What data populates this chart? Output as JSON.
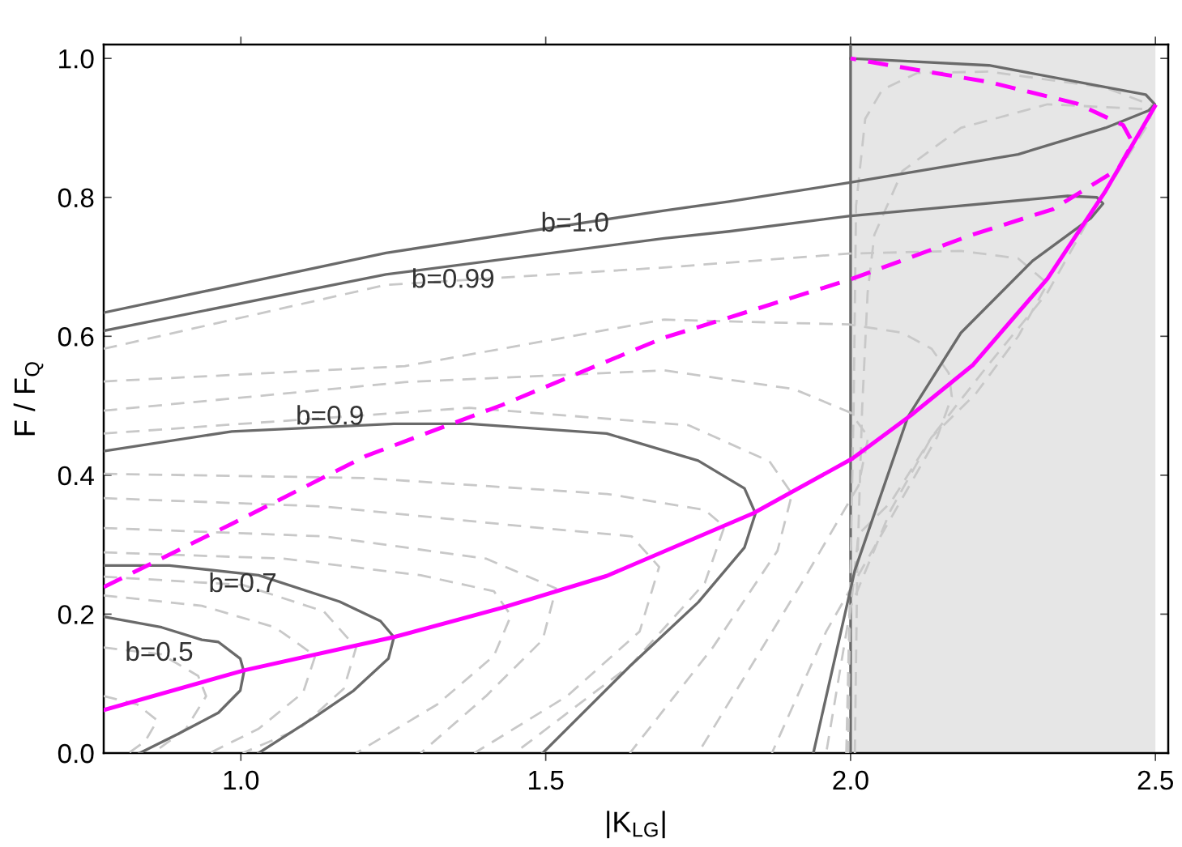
{
  "chart_data": {
    "type": "line",
    "xlabel": "|K$_{LG}$|",
    "ylabel": "F / F$_{Q}$",
    "xlim": [
      0.775,
      2.521
    ],
    "ylim": [
      0,
      1.02
    ],
    "xticks": [
      {
        "value": 1,
        "label": "1.0"
      },
      {
        "value": 1.5,
        "label": "1.5"
      },
      {
        "value": 2,
        "label": "2.0"
      },
      {
        "value": 2.5,
        "label": "2.5"
      }
    ],
    "yticks": [
      {
        "value": 0,
        "label": "0.0"
      },
      {
        "value": 0.2,
        "label": "0.2"
      },
      {
        "value": 0.4,
        "label": "0.4"
      },
      {
        "value": 0.6,
        "label": "0.6"
      },
      {
        "value": 0.8,
        "label": "0.8"
      },
      {
        "value": 1,
        "label": "1.0"
      }
    ],
    "grid": false,
    "legend": false,
    "bands": [
      {
        "axis": "x",
        "from": 2.0,
        "to": 2.5,
        "color": "#e6e6e6"
      }
    ],
    "ref_lines": [
      {
        "axis": "x",
        "value": 2.0,
        "color": "#6a6a6a"
      }
    ],
    "series": [
      {
        "color": "#c8c8c8",
        "line_style": "dashed",
        "x": [
          0.775,
          0.87,
          0.93,
          0.943,
          0.91,
          0.856
        ],
        "values": [
          0.152,
          0.142,
          0.111,
          0.082,
          0.035,
          0.0
        ]
      },
      {
        "color": "#c8c8c8",
        "line_style": "dashed",
        "x": [
          0.775,
          0.83,
          0.863,
          0.843,
          0.816
        ],
        "values": [
          0.082,
          0.07,
          0.047,
          0.017,
          0.0
        ]
      },
      {
        "color": "#c8c8c8",
        "line_style": "dashed",
        "x": [
          0.775,
          0.936,
          1.056,
          1.122,
          1.102,
          1.029,
          0.949
        ],
        "values": [
          0.227,
          0.212,
          0.181,
          0.14,
          0.087,
          0.035,
          0.0
        ]
      },
      {
        "color": "#c8c8c8",
        "line_style": "dashed",
        "x": [
          0.775,
          1.003,
          1.136,
          1.189,
          1.169,
          1.096,
          1.003
        ],
        "values": [
          0.254,
          0.242,
          0.204,
          0.152,
          0.093,
          0.035,
          0.0
        ]
      },
      {
        "color": "#c8c8c8",
        "line_style": "dashed",
        "x": [
          0.775,
          1.069,
          1.295,
          1.415,
          1.443,
          1.415,
          1.322,
          1.189
        ],
        "values": [
          0.289,
          0.28,
          0.256,
          0.233,
          0.198,
          0.14,
          0.07,
          0.0
        ]
      },
      {
        "color": "#c8c8c8",
        "line_style": "dashed",
        "x": [
          0.775,
          1.136,
          1.402,
          1.517,
          1.495,
          1.402,
          1.295
        ],
        "values": [
          0.324,
          0.312,
          0.28,
          0.237,
          0.163,
          0.082,
          0.0
        ]
      },
      {
        "color": "#c8c8c8",
        "line_style": "dashed",
        "x": [
          0.775,
          1.136,
          1.468,
          1.641,
          1.686,
          1.654,
          1.535,
          1.383
        ],
        "values": [
          0.367,
          0.355,
          0.326,
          0.312,
          0.268,
          0.175,
          0.082,
          0.0
        ]
      },
      {
        "color": "#c8c8c8",
        "line_style": "dashed",
        "x": [
          0.775,
          1.202,
          1.601,
          1.761,
          1.793,
          1.761,
          1.641,
          1.449
        ],
        "values": [
          0.402,
          0.396,
          0.373,
          0.35,
          0.326,
          0.245,
          0.128,
          0.0
        ]
      },
      {
        "color": "#c8c8c8",
        "line_style": "dashed",
        "x": [
          0.775,
          1.375,
          1.734,
          1.867,
          1.904,
          1.88,
          1.774,
          1.638
        ],
        "values": [
          0.46,
          0.497,
          0.472,
          0.42,
          0.373,
          0.291,
          0.152,
          0.0
        ]
      },
      {
        "color": "#c8c8c8",
        "line_style": "dashed",
        "x": [
          0.775,
          1.269,
          1.694,
          1.907,
          2.0,
          2.029,
          2.013,
          1.92,
          1.75
        ],
        "values": [
          0.493,
          0.534,
          0.551,
          0.524,
          0.49,
          0.455,
          0.385,
          0.245,
          0.0
        ]
      },
      {
        "color": "#c8c8c8",
        "line_style": "dashed",
        "x": [
          0.775,
          1.269,
          1.694,
          1.997,
          2.085,
          2.133,
          2.161,
          2.166,
          2.142,
          2.066,
          1.96,
          1.871
        ],
        "values": [
          0.535,
          0.557,
          0.624,
          0.617,
          0.605,
          0.582,
          0.547,
          0.513,
          0.455,
          0.338,
          0.175,
          0.0
        ]
      },
      {
        "color": "#c8c8c8",
        "line_style": "dashed",
        "x": [
          0.775,
          1.238,
          1.694,
          1.997,
          2.181,
          2.275,
          2.323,
          2.275,
          2.205,
          2.133,
          2.066,
          2.013,
          1.999,
          1.996
        ],
        "values": [
          0.582,
          0.674,
          0.699,
          0.719,
          0.723,
          0.712,
          0.676,
          0.6,
          0.517,
          0.455,
          0.361,
          0.315,
          0.198,
          0.0
        ]
      },
      {
        "color": "#c8c8c8",
        "line_style": "dashed",
        "x": [
          1.993,
          2.0,
          2.005,
          2.009,
          2.024,
          2.052,
          2.109,
          2.227,
          2.418,
          2.499
        ],
        "values": [
          0.0,
          0.268,
          0.497,
          0.788,
          0.913,
          0.955,
          0.979,
          0.981,
          0.958,
          0.931
        ]
      },
      {
        "color": "#c8c8c8",
        "line_style": "dashed",
        "x": [
          2.007,
          2.011,
          2.019,
          2.028,
          2.039,
          2.085,
          2.181,
          2.323,
          2.484
        ],
        "values": [
          0.0,
          0.268,
          0.497,
          0.663,
          0.746,
          0.838,
          0.9,
          0.934,
          0.927
        ]
      },
      {
        "color": "#c8c8c8",
        "line_style": "dashed",
        "x": [
          2.499,
          2.484,
          2.399,
          2.323,
          2.226,
          2.133,
          2.066,
          2.0,
          1.96
        ],
        "values": [
          0.931,
          0.9,
          0.781,
          0.663,
          0.559,
          0.455,
          0.35,
          0.21,
          0.0
        ]
      },
      {
        "color": "#6a6a6a",
        "line_style": "solid",
        "x": [
          0.777,
          0.87,
          0.936,
          0.963,
          0.999,
          1.005,
          0.999,
          0.963,
          0.896,
          0.834
        ],
        "values": [
          0.196,
          0.181,
          0.163,
          0.16,
          0.136,
          0.117,
          0.09,
          0.058,
          0.027,
          0.0
        ]
      },
      {
        "color": "#6a6a6a",
        "line_style": "solid",
        "x": [
          0.777,
          0.883,
          1.029,
          1.162,
          1.229,
          1.251,
          1.242,
          1.185,
          1.118,
          1.029
        ],
        "values": [
          0.27,
          0.27,
          0.256,
          0.218,
          0.19,
          0.167,
          0.136,
          0.09,
          0.05,
          0.0
        ]
      },
      {
        "color": "#6a6a6a",
        "line_style": "solid",
        "x": [
          0.777,
          0.985,
          1.251,
          1.375,
          1.6,
          1.75,
          1.826,
          1.844,
          1.826,
          1.75,
          1.638,
          1.495
        ],
        "values": [
          0.435,
          0.463,
          0.474,
          0.474,
          0.46,
          0.421,
          0.381,
          0.345,
          0.296,
          0.217,
          0.125,
          0.0
        ]
      },
      {
        "color": "#6a6a6a",
        "line_style": "solid",
        "x": [
          0.775,
          1.238,
          1.694,
          1.801,
          1.997,
          2.356,
          2.404,
          2.414,
          2.394,
          2.299,
          2.181,
          2.094,
          2.007,
          1.939
        ],
        "values": [
          0.608,
          0.689,
          0.741,
          0.751,
          0.773,
          0.802,
          0.8,
          0.791,
          0.77,
          0.709,
          0.605,
          0.484,
          0.263,
          0.0
        ]
      },
      {
        "color": "#6a6a6a",
        "line_style": "solid",
        "x": [
          0.775,
          1.238,
          1.694,
          1.801,
          1.997,
          2.275,
          2.418,
          2.489,
          2.499,
          2.484,
          2.227,
          2.048,
          2.0
        ],
        "values": [
          0.634,
          0.72,
          0.781,
          0.794,
          0.821,
          0.862,
          0.9,
          0.925,
          0.934,
          0.948,
          0.99,
          0.998,
          1.0
        ]
      },
      {
        "color": "#ff00ff",
        "line_style": "dashed",
        "x": [
          0.775,
          0.985,
          1.206,
          1.428,
          1.694,
          1.801,
          2.0,
          2.199,
          2.332,
          2.439,
          2.46,
          2.46,
          2.447,
          2.371,
          2.227,
          2.085,
          2.0
        ],
        "values": [
          0.239,
          0.33,
          0.428,
          0.501,
          0.598,
          0.627,
          0.682,
          0.746,
          0.783,
          0.841,
          0.874,
          0.883,
          0.904,
          0.935,
          0.966,
          0.987,
          1.0
        ]
      },
      {
        "color": "#ff00ff",
        "line_style": "solid",
        "x": [
          0.775,
          1.005,
          1.251,
          1.428,
          1.6,
          1.84,
          2.003,
          2.1,
          2.201,
          2.323,
          2.418,
          2.499
        ],
        "values": [
          0.062,
          0.119,
          0.167,
          0.209,
          0.255,
          0.345,
          0.424,
          0.487,
          0.559,
          0.683,
          0.809,
          0.931
        ]
      }
    ],
    "annotations": [
      {
        "text": "b=1.0",
        "x": 1.548,
        "y": 0.761
      },
      {
        "text": "b=0.99",
        "x": 1.348,
        "y": 0.68
      },
      {
        "text": "b=0.9",
        "x": 1.146,
        "y": 0.483
      },
      {
        "text": "b=0.7",
        "x": 1.003,
        "y": 0.242
      },
      {
        "text": "b=0.5",
        "x": 0.866,
        "y": 0.143
      }
    ]
  }
}
